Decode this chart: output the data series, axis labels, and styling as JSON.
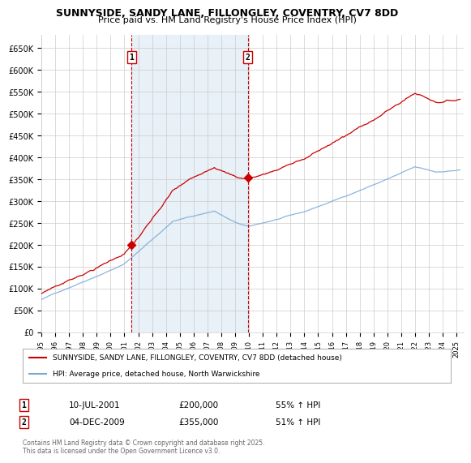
{
  "title": "SUNNYSIDE, SANDY LANE, FILLONGLEY, COVENTRY, CV7 8DD",
  "subtitle": "Price paid vs. HM Land Registry's House Price Index (HPI)",
  "ylim": [
    0,
    680000
  ],
  "yticks": [
    0,
    50000,
    100000,
    150000,
    200000,
    250000,
    300000,
    350000,
    400000,
    450000,
    500000,
    550000,
    600000,
    650000
  ],
  "ytick_labels": [
    "£0",
    "£50K",
    "£100K",
    "£150K",
    "£200K",
    "£250K",
    "£300K",
    "£350K",
    "£400K",
    "£450K",
    "£500K",
    "£550K",
    "£600K",
    "£650K"
  ],
  "xlim_start": 1995.0,
  "xlim_end": 2025.5,
  "vline1_x": 2001.53,
  "vline2_x": 2009.92,
  "sale1_price": 200000,
  "sale2_price": 355000,
  "sale1_label": "1",
  "sale2_label": "2",
  "sale1_date": "10-JUL-2001",
  "sale1_price_str": "£200,000",
  "sale1_hpi": "55% ↑ HPI",
  "sale2_date": "04-DEC-2009",
  "sale2_price_str": "£355,000",
  "sale2_hpi": "51% ↑ HPI",
  "legend_line1": "SUNNYSIDE, SANDY LANE, FILLONGLEY, COVENTRY, CV7 8DD (detached house)",
  "legend_line2": "HPI: Average price, detached house, North Warwickshire",
  "footer": "Contains HM Land Registry data © Crown copyright and database right 2025.\nThis data is licensed under the Open Government Licence v3.0.",
  "red_color": "#cc0000",
  "blue_color": "#7aa8d4",
  "shading_color": "#e8f0f8",
  "background_color": "#ffffff",
  "grid_color": "#cccccc"
}
